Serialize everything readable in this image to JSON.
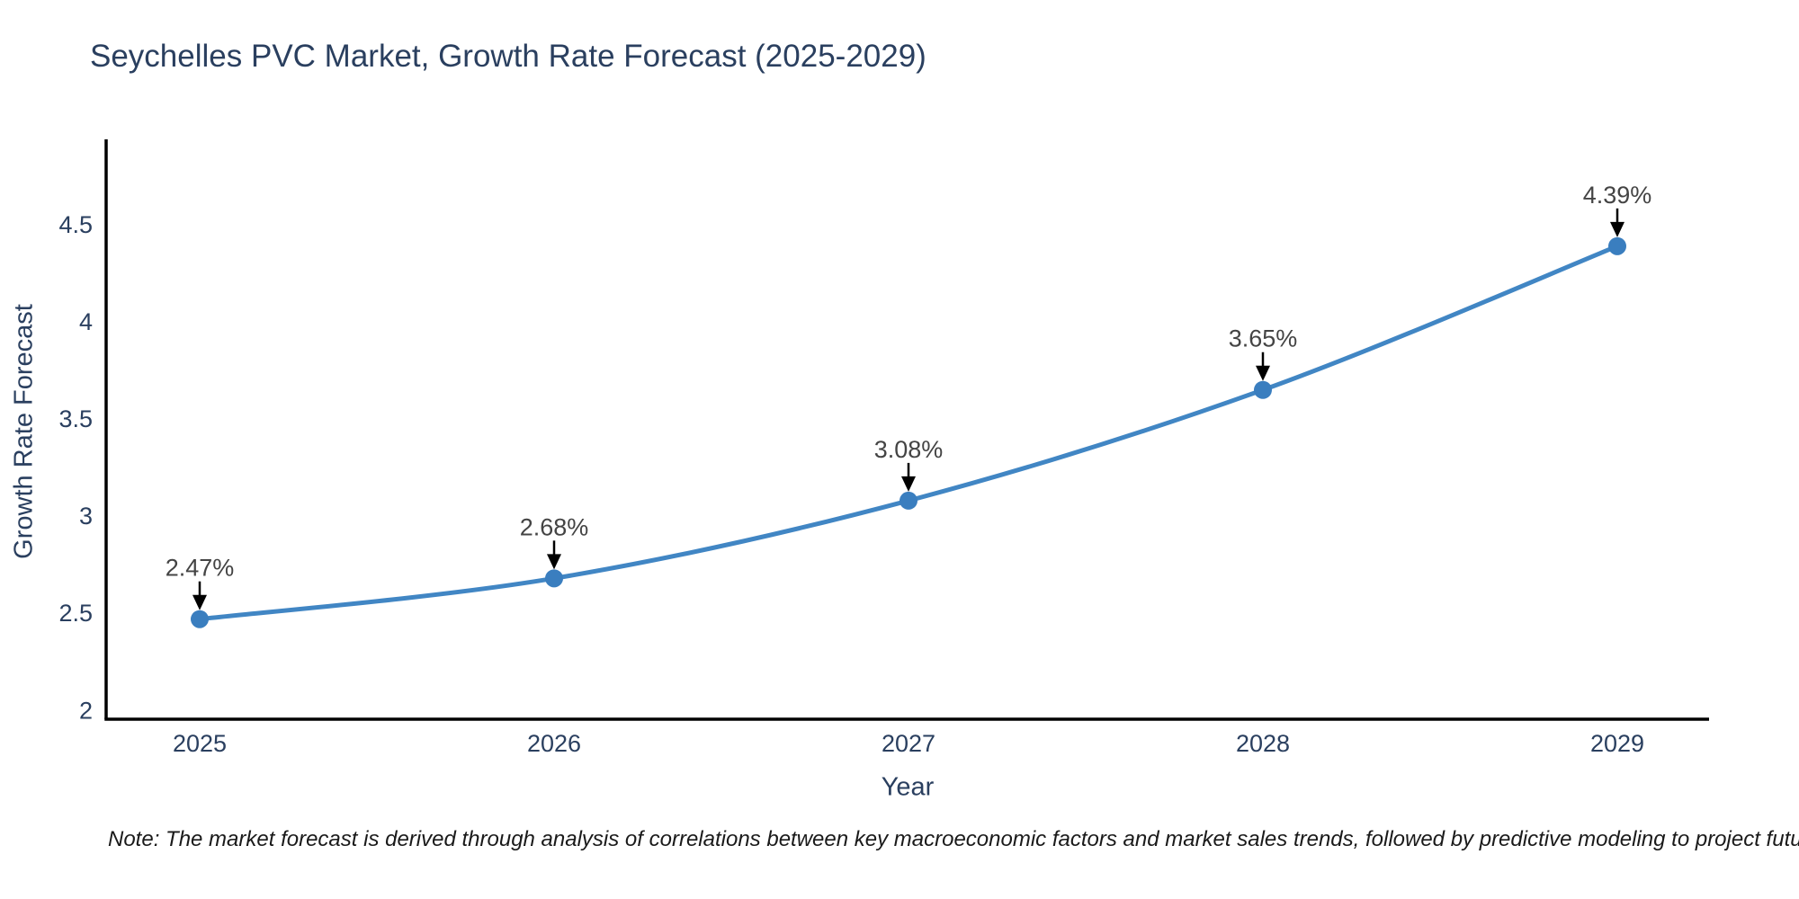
{
  "chart_data": {
    "type": "line",
    "title": "Seychelles PVC Market, Growth Rate Forecast (2025-2029)",
    "xlabel": "Year",
    "ylabel": "Growth Rate Forecast",
    "categories": [
      "2025",
      "2026",
      "2027",
      "2028",
      "2029"
    ],
    "series": [
      {
        "name": "Growth Rate Forecast",
        "values": [
          2.47,
          2.68,
          3.08,
          3.65,
          4.39
        ]
      }
    ],
    "point_labels": [
      "2.47%",
      "2.68%",
      "3.08%",
      "3.65%",
      "4.39%"
    ],
    "ytick_labels": [
      "2",
      "2.5",
      "3",
      "3.5",
      "4",
      "4.5"
    ],
    "ytick_values": [
      2,
      2.5,
      3,
      3.5,
      4,
      4.5
    ],
    "ylim": [
      1.955,
      4.94
    ],
    "grid": false,
    "legend_position": "none",
    "colors": {
      "line": "#4186c4",
      "marker": "#3a7ebf",
      "annotation_text": "#444444",
      "annotation_arrow": "#000000",
      "axis_line": "#000000",
      "axis_text": "#2a3f5f",
      "title_text": "#2a3f5f"
    }
  },
  "note": {
    "text": "Note: The market forecast is derived through analysis of correlations between key macroeconomic factors and market sales trends, followed by predictive modeling to project future sales"
  }
}
